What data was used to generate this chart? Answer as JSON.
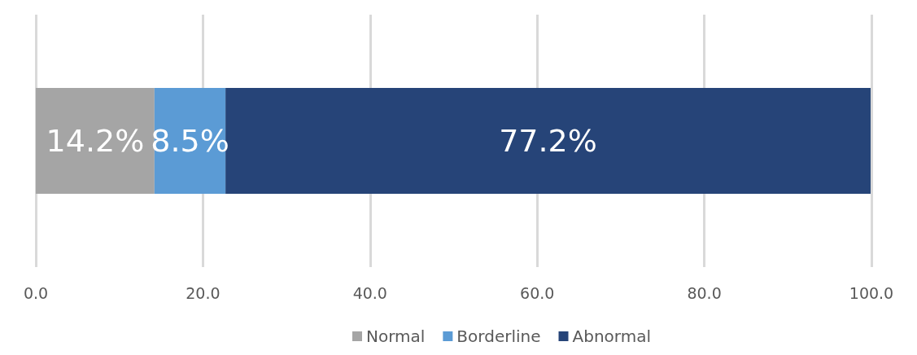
{
  "chart_data": {
    "type": "bar",
    "orientation": "horizontal",
    "stacked": true,
    "categories": [
      null
    ],
    "series": [
      {
        "name": "Normal",
        "color": "#a5a5a5",
        "values": [
          14.2
        ],
        "value_labels": [
          "14.2%"
        ]
      },
      {
        "name": "Borderline",
        "color": "#5b9bd5",
        "values": [
          8.5
        ],
        "value_labels": [
          "8.5%"
        ]
      },
      {
        "name": "Abnormal",
        "color": "#264478",
        "values": [
          77.2
        ],
        "value_labels": [
          "77.2%"
        ]
      }
    ],
    "xlim": [
      0,
      100
    ],
    "xticks": [
      {
        "value": 0,
        "label": "0.0"
      },
      {
        "value": 20,
        "label": "20.0"
      },
      {
        "value": 40,
        "label": "40.0"
      },
      {
        "value": 60,
        "label": "60.0"
      },
      {
        "value": 80,
        "label": "80.0"
      },
      {
        "value": 100,
        "label": "100.0"
      }
    ],
    "grid": "x",
    "legend": "bottom"
  }
}
